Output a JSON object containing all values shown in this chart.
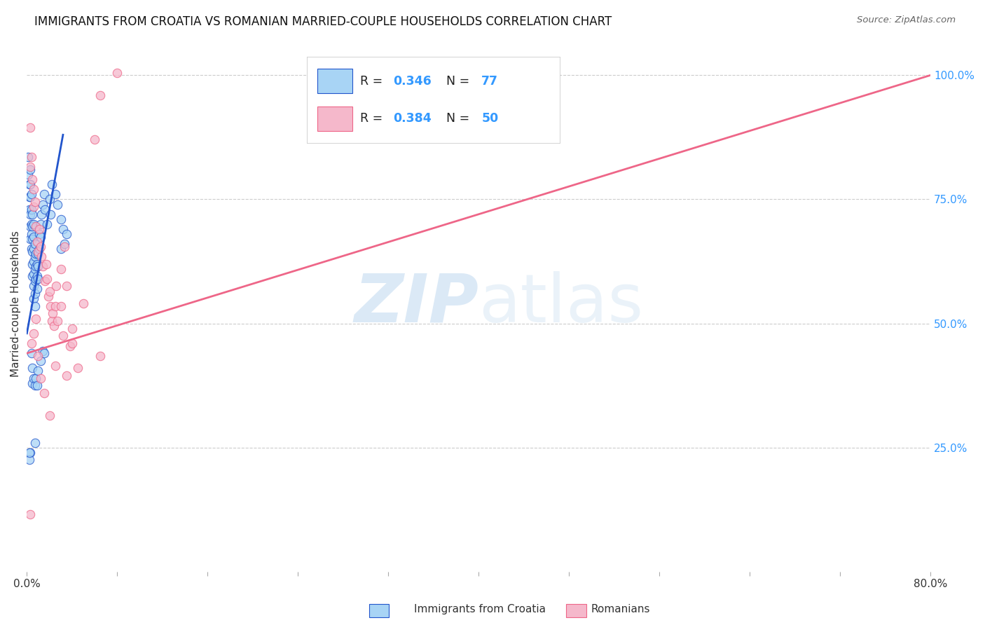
{
  "title": "IMMIGRANTS FROM CROATIA VS ROMANIAN MARRIED-COUPLE HOUSEHOLDS CORRELATION CHART",
  "source": "Source: ZipAtlas.com",
  "ylabel": "Married-couple Households",
  "ytick_vals": [
    0.25,
    0.5,
    0.75,
    1.0
  ],
  "ytick_labels": [
    "25.0%",
    "50.0%",
    "75.0%",
    "100.0%"
  ],
  "xlim": [
    0.0,
    0.8
  ],
  "ylim": [
    0.0,
    1.08
  ],
  "xtick_positions": [
    0.0,
    0.08,
    0.16,
    0.24,
    0.32,
    0.4,
    0.48,
    0.56,
    0.64,
    0.72,
    0.8
  ],
  "watermark": "ZIPatlas",
  "color_blue": "#A8D4F5",
  "color_pink": "#F5B8CB",
  "trendline_blue": "#2255CC",
  "trendline_pink": "#EE6688",
  "blue_scatter": [
    [
      0.001,
      0.835
    ],
    [
      0.001,
      0.8
    ],
    [
      0.002,
      0.78
    ],
    [
      0.002,
      0.755
    ],
    [
      0.002,
      0.73
    ],
    [
      0.003,
      0.81
    ],
    [
      0.003,
      0.78
    ],
    [
      0.003,
      0.755
    ],
    [
      0.003,
      0.72
    ],
    [
      0.003,
      0.695
    ],
    [
      0.003,
      0.67
    ],
    [
      0.004,
      0.76
    ],
    [
      0.004,
      0.73
    ],
    [
      0.004,
      0.7
    ],
    [
      0.004,
      0.68
    ],
    [
      0.004,
      0.65
    ],
    [
      0.005,
      0.72
    ],
    [
      0.005,
      0.695
    ],
    [
      0.005,
      0.67
    ],
    [
      0.005,
      0.645
    ],
    [
      0.005,
      0.62
    ],
    [
      0.005,
      0.595
    ],
    [
      0.006,
      0.7
    ],
    [
      0.006,
      0.675
    ],
    [
      0.006,
      0.65
    ],
    [
      0.006,
      0.625
    ],
    [
      0.006,
      0.6
    ],
    [
      0.006,
      0.575
    ],
    [
      0.006,
      0.55
    ],
    [
      0.007,
      0.66
    ],
    [
      0.007,
      0.635
    ],
    [
      0.007,
      0.61
    ],
    [
      0.007,
      0.585
    ],
    [
      0.007,
      0.56
    ],
    [
      0.007,
      0.535
    ],
    [
      0.008,
      0.64
    ],
    [
      0.008,
      0.615
    ],
    [
      0.008,
      0.59
    ],
    [
      0.009,
      0.62
    ],
    [
      0.009,
      0.595
    ],
    [
      0.009,
      0.57
    ],
    [
      0.01,
      0.64
    ],
    [
      0.01,
      0.615
    ],
    [
      0.01,
      0.59
    ],
    [
      0.011,
      0.68
    ],
    [
      0.011,
      0.65
    ],
    [
      0.012,
      0.7
    ],
    [
      0.012,
      0.675
    ],
    [
      0.013,
      0.72
    ],
    [
      0.014,
      0.74
    ],
    [
      0.015,
      0.76
    ],
    [
      0.016,
      0.73
    ],
    [
      0.018,
      0.7
    ],
    [
      0.02,
      0.75
    ],
    [
      0.021,
      0.72
    ],
    [
      0.022,
      0.78
    ],
    [
      0.025,
      0.76
    ],
    [
      0.027,
      0.74
    ],
    [
      0.03,
      0.71
    ],
    [
      0.03,
      0.65
    ],
    [
      0.032,
      0.69
    ],
    [
      0.033,
      0.66
    ],
    [
      0.035,
      0.68
    ],
    [
      0.004,
      0.44
    ],
    [
      0.005,
      0.41
    ],
    [
      0.005,
      0.38
    ],
    [
      0.006,
      0.39
    ],
    [
      0.007,
      0.375
    ],
    [
      0.008,
      0.39
    ],
    [
      0.009,
      0.375
    ],
    [
      0.01,
      0.405
    ],
    [
      0.012,
      0.425
    ],
    [
      0.014,
      0.445
    ],
    [
      0.015,
      0.44
    ],
    [
      0.003,
      0.24
    ],
    [
      0.002,
      0.225
    ],
    [
      0.007,
      0.26
    ],
    [
      0.002,
      0.24
    ]
  ],
  "pink_scatter": [
    [
      0.003,
      0.895
    ],
    [
      0.004,
      0.835
    ],
    [
      0.003,
      0.815
    ],
    [
      0.005,
      0.79
    ],
    [
      0.006,
      0.77
    ],
    [
      0.006,
      0.735
    ],
    [
      0.007,
      0.745
    ],
    [
      0.008,
      0.695
    ],
    [
      0.009,
      0.665
    ],
    [
      0.01,
      0.645
    ],
    [
      0.011,
      0.69
    ],
    [
      0.012,
      0.655
    ],
    [
      0.013,
      0.635
    ],
    [
      0.014,
      0.615
    ],
    [
      0.016,
      0.585
    ],
    [
      0.017,
      0.62
    ],
    [
      0.018,
      0.59
    ],
    [
      0.019,
      0.555
    ],
    [
      0.02,
      0.565
    ],
    [
      0.021,
      0.535
    ],
    [
      0.022,
      0.505
    ],
    [
      0.023,
      0.52
    ],
    [
      0.024,
      0.495
    ],
    [
      0.025,
      0.535
    ],
    [
      0.026,
      0.575
    ],
    [
      0.027,
      0.505
    ],
    [
      0.03,
      0.61
    ],
    [
      0.03,
      0.535
    ],
    [
      0.032,
      0.475
    ],
    [
      0.033,
      0.655
    ],
    [
      0.035,
      0.575
    ],
    [
      0.038,
      0.455
    ],
    [
      0.04,
      0.49
    ],
    [
      0.05,
      0.54
    ],
    [
      0.06,
      0.87
    ],
    [
      0.065,
      0.435
    ],
    [
      0.04,
      0.46
    ],
    [
      0.045,
      0.41
    ],
    [
      0.004,
      0.46
    ],
    [
      0.006,
      0.48
    ],
    [
      0.008,
      0.51
    ],
    [
      0.01,
      0.435
    ],
    [
      0.012,
      0.39
    ],
    [
      0.015,
      0.36
    ],
    [
      0.02,
      0.315
    ],
    [
      0.025,
      0.415
    ],
    [
      0.035,
      0.395
    ],
    [
      0.003,
      0.115
    ],
    [
      0.08,
      1.005
    ],
    [
      0.065,
      0.96
    ]
  ],
  "blue_trend_x": [
    0.0,
    0.032
  ],
  "blue_trend_y": [
    0.48,
    0.88
  ],
  "pink_trend_x": [
    0.0,
    0.8
  ],
  "pink_trend_y": [
    0.44,
    1.0
  ],
  "background_color": "#ffffff",
  "grid_color": "#cccccc",
  "title_fontsize": 12,
  "axis_fontsize": 11
}
